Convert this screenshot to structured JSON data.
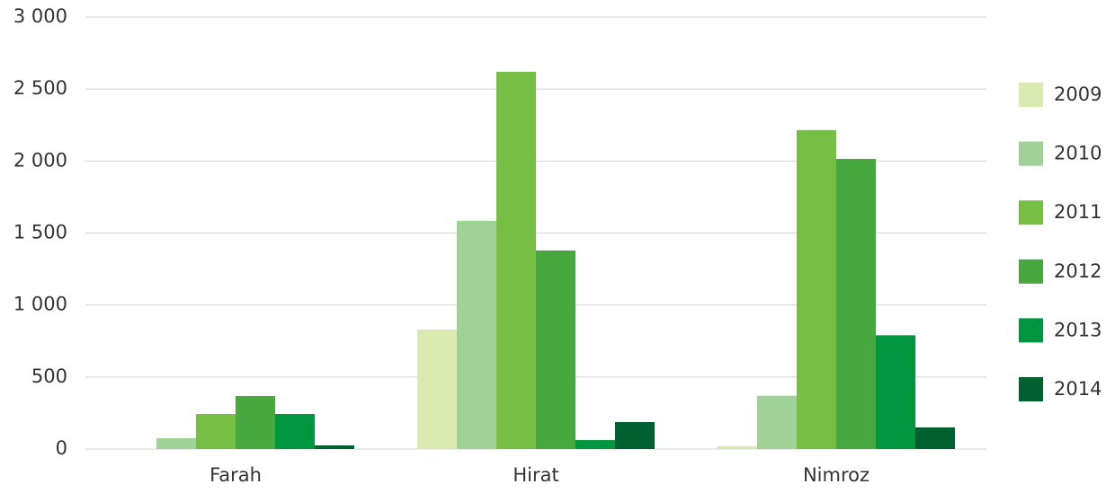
{
  "chart_data": {
    "type": "bar",
    "categories": [
      "Farah",
      "Hirat",
      "Nimroz"
    ],
    "series": [
      {
        "name": "2009",
        "color": "#dae9b0",
        "values": [
          0,
          830,
          20
        ]
      },
      {
        "name": "2010",
        "color": "#a0d197",
        "values": [
          75,
          1585,
          370
        ]
      },
      {
        "name": "2011",
        "color": "#76bf44",
        "values": [
          243,
          2620,
          2215
        ]
      },
      {
        "name": "2012",
        "color": "#46a83f",
        "values": [
          368,
          1379,
          2015
        ]
      },
      {
        "name": "2013",
        "color": "#00963f",
        "values": [
          243,
          62,
          790
        ]
      },
      {
        "name": "2014",
        "color": "#00602f",
        "values": [
          25,
          187,
          150
        ]
      }
    ],
    "ylim": [
      0,
      3000
    ],
    "yticks": [
      0,
      500,
      {
        "value": 1000,
        "label": "1 000"
      },
      {
        "value": 1500,
        "label": "1 500"
      },
      {
        "value": 2000,
        "label": "2 000"
      },
      {
        "value": 2500,
        "label": "2 500"
      },
      {
        "value": 3000,
        "label": "3 000"
      }
    ],
    "grid": true,
    "legend": "right"
  }
}
